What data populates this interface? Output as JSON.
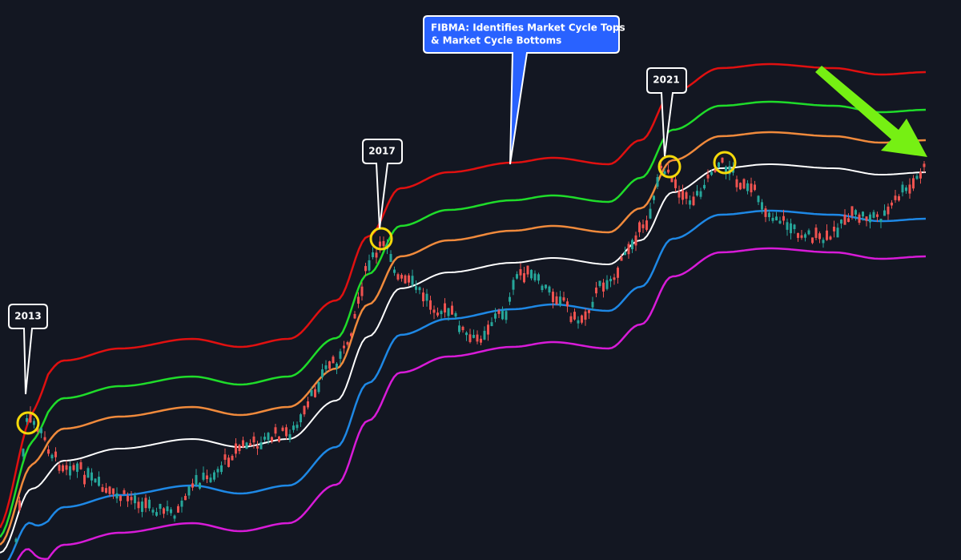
{
  "callout": {
    "lines": [
      "FIBMA: Identifies Market Cycle Tops",
      "& Market Cycle Bottoms"
    ]
  },
  "year_labels": [
    "2013",
    "2017",
    "2021"
  ]
}
